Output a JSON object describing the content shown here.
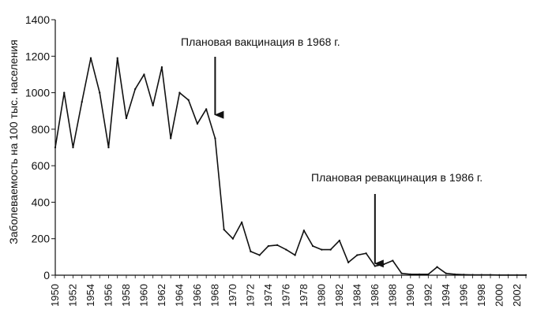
{
  "chart_data": {
    "type": "line",
    "title": "",
    "xlabel": "",
    "ylabel": "Заболеваемость на 100 тыс. населения",
    "ylim": [
      0,
      1400
    ],
    "yticks": [
      0,
      200,
      400,
      600,
      800,
      1000,
      1200,
      1400
    ],
    "xlim": [
      1950,
      2003
    ],
    "xticks": [
      1950,
      1952,
      1954,
      1956,
      1958,
      1960,
      1962,
      1964,
      1966,
      1968,
      1970,
      1972,
      1974,
      1976,
      1978,
      1980,
      1982,
      1984,
      1986,
      1988,
      1990,
      1992,
      1994,
      1996,
      1998,
      2000,
      2002
    ],
    "grid": false,
    "legend": "none",
    "series": [
      {
        "color": "#111111",
        "x": [
          1950,
          1951,
          1952,
          1953,
          1954,
          1955,
          1956,
          1957,
          1958,
          1959,
          1960,
          1961,
          1962,
          1963,
          1964,
          1965,
          1966,
          1967,
          1968,
          1969,
          1970,
          1971,
          1972,
          1973,
          1974,
          1975,
          1976,
          1977,
          1978,
          1979,
          1980,
          1981,
          1982,
          1983,
          1984,
          1985,
          1986,
          1987,
          1988,
          1989,
          1990,
          1991,
          1992,
          1993,
          1994,
          1995,
          1996,
          1997,
          1998,
          1999,
          2000,
          2001,
          2002,
          2003
        ],
        "values": [
          700,
          1000,
          700,
          950,
          1190,
          1000,
          700,
          1190,
          860,
          1020,
          1100,
          930,
          1140,
          750,
          1000,
          960,
          830,
          910,
          750,
          250,
          200,
          290,
          130,
          110,
          160,
          165,
          140,
          110,
          245,
          160,
          140,
          140,
          190,
          70,
          110,
          120,
          50,
          60,
          80,
          10,
          5,
          5,
          5,
          45,
          10,
          5,
          3,
          2,
          2,
          2,
          1,
          1,
          1,
          1
        ]
      }
    ],
    "annotations": [
      {
        "text": "Плановая вакцинация в 1968 г.",
        "x": 1968,
        "arrow_tip_value": 870
      },
      {
        "text": "Плановая ревакцинация в 1986 г.",
        "x": 1986,
        "arrow_tip_value": 55
      }
    ]
  }
}
